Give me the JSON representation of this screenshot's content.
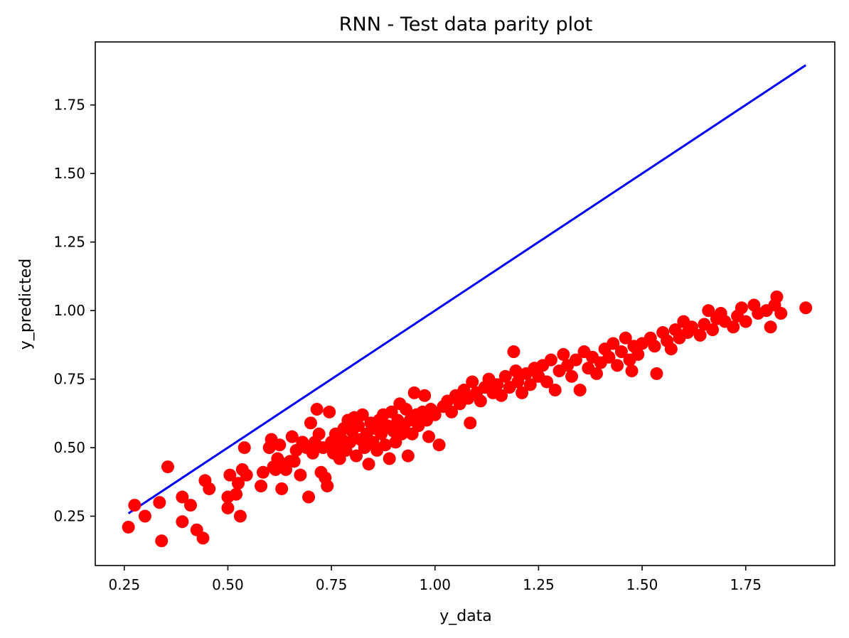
{
  "chart_data": {
    "type": "scatter",
    "title": "RNN - Test data parity plot",
    "xlabel": "y_data",
    "ylabel": "y_predicted",
    "xlim": [
      0.18,
      1.965
    ],
    "ylim": [
      0.07,
      1.98
    ],
    "xticks": [
      0.25,
      0.5,
      0.75,
      1.0,
      1.25,
      1.5,
      1.75
    ],
    "xtick_labels": [
      "0.25",
      "0.50",
      "0.75",
      "1.00",
      "1.25",
      "1.50",
      "1.75"
    ],
    "yticks": [
      0.25,
      0.5,
      0.75,
      1.0,
      1.25,
      1.5,
      1.75
    ],
    "ytick_labels": [
      "0.25",
      "0.50",
      "0.75",
      "1.00",
      "1.25",
      "1.50",
      "1.75"
    ],
    "grid": false,
    "colors": {
      "points": "#ff0000",
      "line": "#0000ff",
      "axes": "#000000"
    },
    "series": [
      {
        "type": "line",
        "x": [
          0.26,
          1.895
        ],
        "y": [
          0.26,
          1.895
        ]
      },
      {
        "type": "scatter",
        "points": [
          [
            0.26,
            0.21
          ],
          [
            0.275,
            0.29
          ],
          [
            0.3,
            0.25
          ],
          [
            0.34,
            0.16
          ],
          [
            0.335,
            0.3
          ],
          [
            0.355,
            0.43
          ],
          [
            0.39,
            0.23
          ],
          [
            0.39,
            0.32
          ],
          [
            0.41,
            0.29
          ],
          [
            0.425,
            0.2
          ],
          [
            0.44,
            0.17
          ],
          [
            0.445,
            0.38
          ],
          [
            0.455,
            0.35
          ],
          [
            0.5,
            0.28
          ],
          [
            0.5,
            0.32
          ],
          [
            0.505,
            0.4
          ],
          [
            0.52,
            0.33
          ],
          [
            0.525,
            0.37
          ],
          [
            0.53,
            0.25
          ],
          [
            0.535,
            0.42
          ],
          [
            0.54,
            0.5
          ],
          [
            0.545,
            0.4
          ],
          [
            0.58,
            0.36
          ],
          [
            0.585,
            0.41
          ],
          [
            0.6,
            0.5
          ],
          [
            0.605,
            0.53
          ],
          [
            0.61,
            0.43
          ],
          [
            0.615,
            0.42
          ],
          [
            0.62,
            0.46
          ],
          [
            0.625,
            0.51
          ],
          [
            0.63,
            0.35
          ],
          [
            0.635,
            0.44
          ],
          [
            0.64,
            0.42
          ],
          [
            0.65,
            0.45
          ],
          [
            0.655,
            0.54
          ],
          [
            0.66,
            0.45
          ],
          [
            0.665,
            0.49
          ],
          [
            0.675,
            0.4
          ],
          [
            0.68,
            0.52
          ],
          [
            0.69,
            0.5
          ],
          [
            0.695,
            0.32
          ],
          [
            0.7,
            0.59
          ],
          [
            0.705,
            0.48
          ],
          [
            0.71,
            0.52
          ],
          [
            0.715,
            0.64
          ],
          [
            0.72,
            0.55
          ],
          [
            0.725,
            0.41
          ],
          [
            0.73,
            0.5
          ],
          [
            0.735,
            0.39
          ],
          [
            0.74,
            0.36
          ],
          [
            0.745,
            0.63
          ],
          [
            0.75,
            0.52
          ],
          [
            0.755,
            0.48
          ],
          [
            0.76,
            0.55
          ],
          [
            0.765,
            0.5
          ],
          [
            0.77,
            0.46
          ],
          [
            0.775,
            0.53
          ],
          [
            0.78,
            0.57
          ],
          [
            0.785,
            0.49
          ],
          [
            0.79,
            0.6
          ],
          [
            0.795,
            0.52
          ],
          [
            0.8,
            0.56
          ],
          [
            0.805,
            0.61
          ],
          [
            0.81,
            0.47
          ],
          [
            0.815,
            0.58
          ],
          [
            0.82,
            0.53
          ],
          [
            0.825,
            0.62
          ],
          [
            0.83,
            0.5
          ],
          [
            0.835,
            0.55
          ],
          [
            0.84,
            0.44
          ],
          [
            0.845,
            0.59
          ],
          [
            0.85,
            0.52
          ],
          [
            0.855,
            0.57
          ],
          [
            0.86,
            0.49
          ],
          [
            0.865,
            0.6
          ],
          [
            0.87,
            0.55
          ],
          [
            0.875,
            0.62
          ],
          [
            0.88,
            0.51
          ],
          [
            0.885,
            0.58
          ],
          [
            0.89,
            0.46
          ],
          [
            0.895,
            0.63
          ],
          [
            0.9,
            0.56
          ],
          [
            0.905,
            0.52
          ],
          [
            0.91,
            0.6
          ],
          [
            0.915,
            0.66
          ],
          [
            0.92,
            0.55
          ],
          [
            0.925,
            0.58
          ],
          [
            0.93,
            0.64
          ],
          [
            0.935,
            0.47
          ],
          [
            0.94,
            0.6
          ],
          [
            0.945,
            0.55
          ],
          [
            0.95,
            0.7
          ],
          [
            0.955,
            0.62
          ],
          [
            0.96,
            0.58
          ],
          [
            0.97,
            0.63
          ],
          [
            0.975,
            0.69
          ],
          [
            0.98,
            0.6
          ],
          [
            0.985,
            0.54
          ],
          [
            0.99,
            0.64
          ],
          [
            1.0,
            0.62
          ],
          [
            1.01,
            0.51
          ],
          [
            1.02,
            0.65
          ],
          [
            1.03,
            0.67
          ],
          [
            1.04,
            0.63
          ],
          [
            1.05,
            0.69
          ],
          [
            1.06,
            0.66
          ],
          [
            1.07,
            0.71
          ],
          [
            1.08,
            0.68
          ],
          [
            1.085,
            0.59
          ],
          [
            1.09,
            0.74
          ],
          [
            1.1,
            0.7
          ],
          [
            1.11,
            0.67
          ],
          [
            1.12,
            0.72
          ],
          [
            1.13,
            0.75
          ],
          [
            1.14,
            0.7
          ],
          [
            1.15,
            0.73
          ],
          [
            1.16,
            0.69
          ],
          [
            1.17,
            0.76
          ],
          [
            1.18,
            0.72
          ],
          [
            1.19,
            0.85
          ],
          [
            1.195,
            0.78
          ],
          [
            1.2,
            0.74
          ],
          [
            1.21,
            0.7
          ],
          [
            1.22,
            0.77
          ],
          [
            1.23,
            0.73
          ],
          [
            1.24,
            0.79
          ],
          [
            1.25,
            0.76
          ],
          [
            1.26,
            0.8
          ],
          [
            1.27,
            0.74
          ],
          [
            1.28,
            0.82
          ],
          [
            1.29,
            0.71
          ],
          [
            1.3,
            0.78
          ],
          [
            1.31,
            0.84
          ],
          [
            1.32,
            0.8
          ],
          [
            1.33,
            0.76
          ],
          [
            1.34,
            0.82
          ],
          [
            1.35,
            0.71
          ],
          [
            1.36,
            0.85
          ],
          [
            1.37,
            0.79
          ],
          [
            1.38,
            0.83
          ],
          [
            1.39,
            0.77
          ],
          [
            1.4,
            0.81
          ],
          [
            1.41,
            0.86
          ],
          [
            1.42,
            0.83
          ],
          [
            1.43,
            0.88
          ],
          [
            1.44,
            0.8
          ],
          [
            1.45,
            0.85
          ],
          [
            1.46,
            0.9
          ],
          [
            1.47,
            0.82
          ],
          [
            1.475,
            0.78
          ],
          [
            1.48,
            0.87
          ],
          [
            1.49,
            0.84
          ],
          [
            1.5,
            0.88
          ],
          [
            1.52,
            0.9
          ],
          [
            1.53,
            0.87
          ],
          [
            1.535,
            0.77
          ],
          [
            1.55,
            0.92
          ],
          [
            1.56,
            0.89
          ],
          [
            1.57,
            0.86
          ],
          [
            1.58,
            0.93
          ],
          [
            1.59,
            0.9
          ],
          [
            1.6,
            0.96
          ],
          [
            1.61,
            0.92
          ],
          [
            1.62,
            0.94
          ],
          [
            1.64,
            0.91
          ],
          [
            1.65,
            0.95
          ],
          [
            1.66,
            1.0
          ],
          [
            1.67,
            0.93
          ],
          [
            1.68,
            0.97
          ],
          [
            1.69,
            0.99
          ],
          [
            1.7,
            0.96
          ],
          [
            1.72,
            0.94
          ],
          [
            1.73,
            0.98
          ],
          [
            1.74,
            1.01
          ],
          [
            1.75,
            0.96
          ],
          [
            1.77,
            1.02
          ],
          [
            1.78,
            0.99
          ],
          [
            1.8,
            1.0
          ],
          [
            1.81,
            0.94
          ],
          [
            1.82,
            1.02
          ],
          [
            1.825,
            1.05
          ],
          [
            1.835,
            0.99
          ],
          [
            1.895,
            1.01
          ]
        ]
      }
    ]
  }
}
